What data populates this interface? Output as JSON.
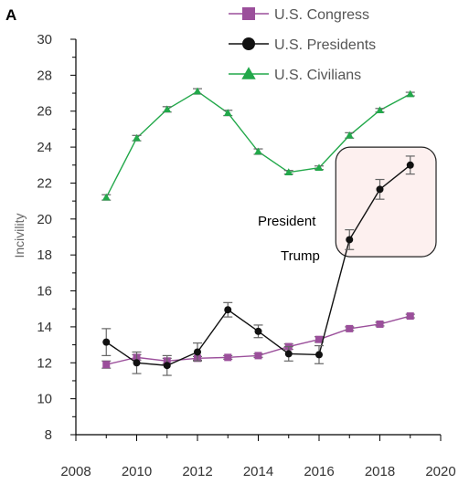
{
  "panel_label": "A",
  "colors": {
    "congress": "#9b4f9b",
    "presidents": "#111111",
    "civilians": "#22a84a",
    "highlight_fill": "#fdf0ef",
    "highlight_stroke": "#222222",
    "error_bar": "#666666",
    "axis": "#000000"
  },
  "chart_data": {
    "type": "line",
    "title": "",
    "xlabel": "",
    "ylabel": "Incivility",
    "xlim": [
      2008,
      2020
    ],
    "ylim": [
      8,
      30
    ],
    "x_ticks": [
      "2008",
      "2010",
      "2012",
      "2014",
      "2016",
      "2018",
      "2020"
    ],
    "y_ticks": [
      "8",
      "10",
      "12",
      "14",
      "16",
      "18",
      "20",
      "22",
      "24",
      "26",
      "28",
      "30"
    ],
    "legend_position": "top-right",
    "series": [
      {
        "name": "U.S. Congress",
        "marker": "square",
        "color": "#9b4f9b",
        "x": [
          2009,
          2010,
          2011,
          2012,
          2013,
          2014,
          2015,
          2016,
          2017,
          2018,
          2019
        ],
        "y": [
          11.9,
          12.3,
          12.1,
          12.25,
          12.3,
          12.4,
          12.9,
          13.3,
          13.9,
          14.15,
          14.6
        ],
        "err": [
          0.2,
          0.15,
          0.15,
          0.1,
          0.1,
          0.1,
          0.15,
          0.15,
          0.1,
          0.1,
          0.1
        ]
      },
      {
        "name": "U.S. Presidents",
        "marker": "circle",
        "color": "#111111",
        "x": [
          2009,
          2010,
          2011,
          2012,
          2013,
          2014,
          2015,
          2016,
          2017,
          2018,
          2019
        ],
        "y": [
          13.15,
          12.0,
          11.85,
          12.6,
          14.95,
          13.75,
          12.5,
          12.45,
          18.85,
          21.65,
          23.0
        ],
        "err": [
          0.75,
          0.6,
          0.55,
          0.5,
          0.4,
          0.35,
          0.4,
          0.5,
          0.55,
          0.55,
          0.5
        ]
      },
      {
        "name": "U.S. Civilians",
        "marker": "triangle",
        "color": "#22a84a",
        "x": [
          2009,
          2010,
          2011,
          2012,
          2013,
          2014,
          2015,
          2016,
          2017,
          2018,
          2019
        ],
        "y": [
          21.2,
          24.5,
          26.1,
          27.1,
          25.9,
          23.75,
          22.6,
          22.85,
          24.65,
          26.05,
          26.95
        ],
        "err": [
          0.15,
          0.15,
          0.15,
          0.15,
          0.15,
          0.15,
          0.1,
          0.1,
          0.15,
          0.1,
          0.1
        ]
      }
    ],
    "annotation": {
      "lines": [
        "President",
        "Trump"
      ],
      "highlight_x_range": [
        2016.55,
        2019.85
      ],
      "highlight_y_range": [
        17.9,
        24.0
      ]
    }
  }
}
